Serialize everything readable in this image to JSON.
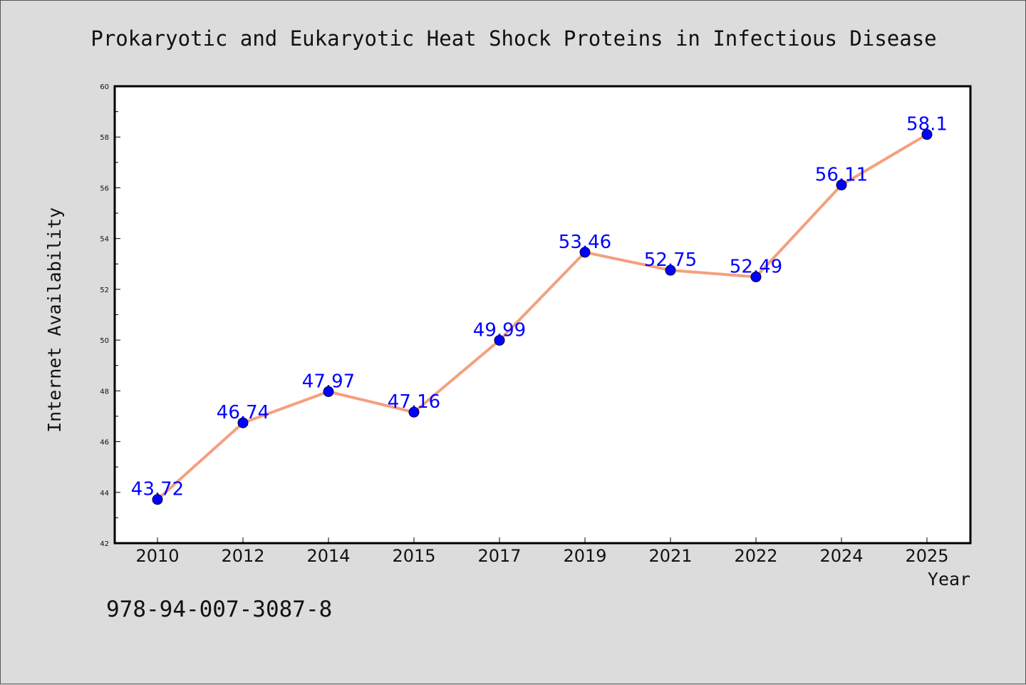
{
  "chart_data": {
    "type": "line",
    "title": "Prokaryotic and Eukaryotic Heat Shock Proteins in Infectious Disease",
    "xlabel": "Year",
    "ylabel": "Internet Availability",
    "categories": [
      "2010",
      "2012",
      "2014",
      "2015",
      "2017",
      "2019",
      "2021",
      "2022",
      "2024",
      "2025"
    ],
    "series": [
      {
        "values": [
          43.72,
          46.74,
          47.97,
          47.16,
          49.99,
          53.46,
          52.75,
          52.49,
          56.11,
          58.1
        ],
        "data_labels": [
          "43.72",
          "46.74",
          "47.97",
          "47.16",
          "49.99",
          "53.46",
          "52.75",
          "52.49",
          "56.11",
          "58.1"
        ],
        "line_color": "#f4a07f",
        "marker_color": "#0000ff",
        "label_color": "#0000ff"
      }
    ],
    "ylim": [
      42,
      60
    ],
    "yticks": [
      42,
      44,
      46,
      48,
      50,
      52,
      54,
      56,
      58,
      60
    ],
    "ytick_labels": [
      "42",
      "44",
      "46",
      "48",
      "50",
      "52",
      "54",
      "56",
      "58",
      "60"
    ],
    "grid": false,
    "legend": "none"
  },
  "annotation": "978-94-007-3087-8",
  "colors": {
    "figure_background": "#dcdcdc",
    "plot_background": "#ffffff",
    "axes_frame": "#000000"
  }
}
